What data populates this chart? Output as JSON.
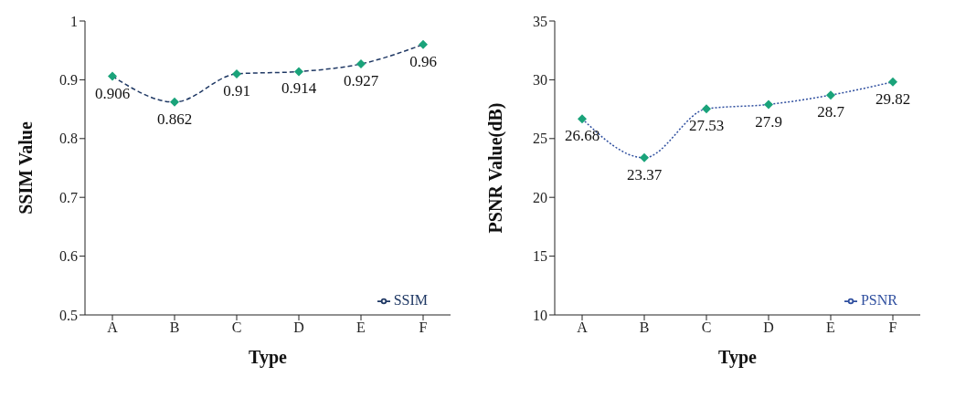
{
  "chart_data": [
    {
      "type": "line",
      "xlabel": "Type",
      "ylabel": "SSIM Value",
      "categories": [
        "A",
        "B",
        "C",
        "D",
        "E",
        "F"
      ],
      "series": [
        {
          "name": "SSIM",
          "color": "#1f3864",
          "values": [
            0.906,
            0.862,
            0.91,
            0.914,
            0.927,
            0.96
          ]
        }
      ],
      "ylim": [
        0.5,
        1
      ],
      "yticks": [
        0.5,
        0.6,
        0.7,
        0.8,
        0.9,
        1
      ],
      "grid": false,
      "legend": "bottom right",
      "marker": "diamond",
      "line_style": "dashed",
      "data_labels": true
    },
    {
      "type": "line",
      "xlabel": "Type",
      "ylabel": "PSNR Value(dB)",
      "categories": [
        "A",
        "B",
        "C",
        "D",
        "E",
        "F"
      ],
      "series": [
        {
          "name": "PSNR",
          "color": "#2f4f9f",
          "values": [
            26.68,
            23.37,
            27.53,
            27.9,
            28.7,
            29.82
          ]
        }
      ],
      "ylim": [
        10,
        35
      ],
      "yticks": [
        10,
        15,
        20,
        25,
        30,
        35
      ],
      "grid": false,
      "legend": "bottom right",
      "marker": "diamond",
      "line_style": "dotted",
      "data_labels": true
    }
  ]
}
